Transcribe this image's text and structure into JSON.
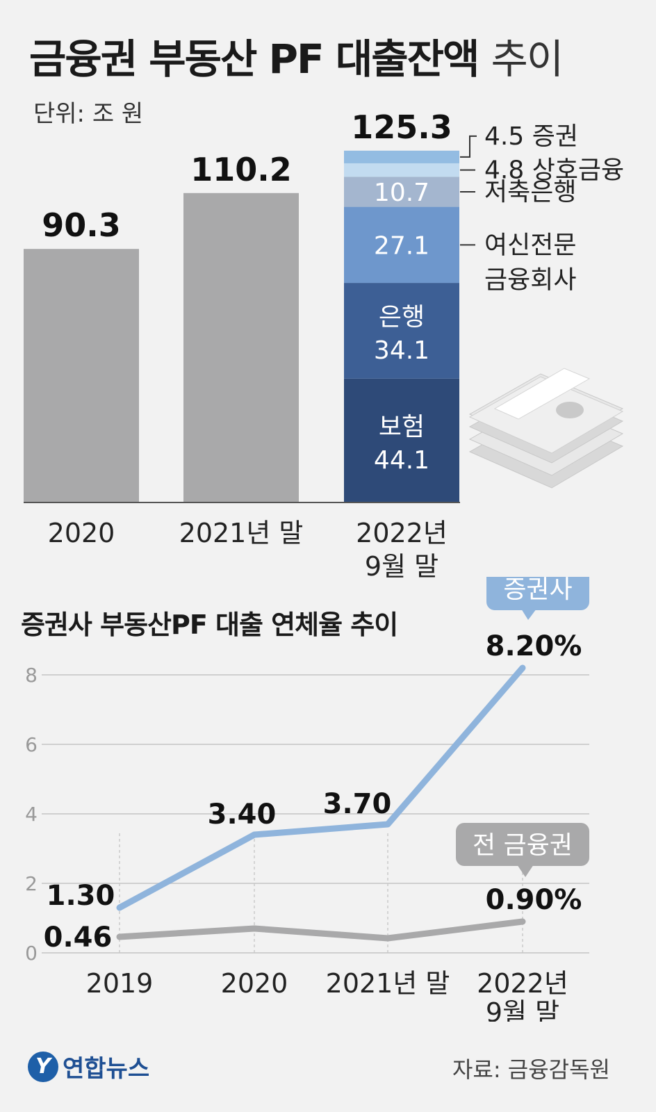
{
  "header": {
    "title_bold": "금융권 부동산 PF 대출잔액",
    "title_light": "추이",
    "unit": "단위: 조 원"
  },
  "chart_data": [
    {
      "type": "bar",
      "title": "금융권 부동산 PF 대출잔액 추이",
      "unit": "단위: 조 원",
      "categories": [
        "2020",
        "2021년 말",
        "2022년 9월 말"
      ],
      "totals": [
        90.3,
        110.2,
        125.3
      ],
      "total_labels": [
        "90.3",
        "110.2",
        "125.3"
      ],
      "stacked_breakdown": {
        "category": "2022년 9월 말",
        "segments": [
          {
            "name": "보험",
            "value": 44.1,
            "label": "44.1",
            "color": "#2e4a78"
          },
          {
            "name": "은행",
            "value": 34.1,
            "label": "34.1",
            "color": "#3d5f95"
          },
          {
            "name": "여신전문 금융회사",
            "value": 27.1,
            "label": "27.1",
            "color": "#6e97cc"
          },
          {
            "name": "저축은행",
            "value": 10.7,
            "label": "10.7",
            "color": "#a4b6cf"
          },
          {
            "name": "상호금융",
            "value": 4.8,
            "label": "4.8",
            "color": "#c2dbf0"
          },
          {
            "name": "증권",
            "value": 4.5,
            "label": "4.5",
            "color": "#93bce2"
          }
        ]
      },
      "colors": {
        "gray_bar": "#a9a9aa",
        "axis": "#555555"
      }
    },
    {
      "type": "line",
      "title": "증권사 부동산PF 대출 연체율 추이",
      "categories": [
        "2019",
        "2020",
        "2021년 말",
        "2022년 9월 말"
      ],
      "y_ticks": [
        0,
        2,
        4,
        6,
        8
      ],
      "ylim": [
        0,
        9.1
      ],
      "grid": true,
      "series": [
        {
          "name": "증권사",
          "values": [
            1.3,
            3.4,
            3.7,
            8.2
          ],
          "labels": [
            "1.30",
            "3.40",
            "3.70",
            "8.20%"
          ],
          "color": "#8fb4dc"
        },
        {
          "name": "전 금융권",
          "values": [
            0.46,
            null,
            null,
            0.9
          ],
          "labels": [
            "0.46",
            "",
            "",
            "0.90%"
          ],
          "color": "#a9a9aa"
        }
      ]
    }
  ],
  "footer": {
    "brand_logo": "Y",
    "brand": "연합뉴스",
    "source": "자료: 금융감독원"
  }
}
